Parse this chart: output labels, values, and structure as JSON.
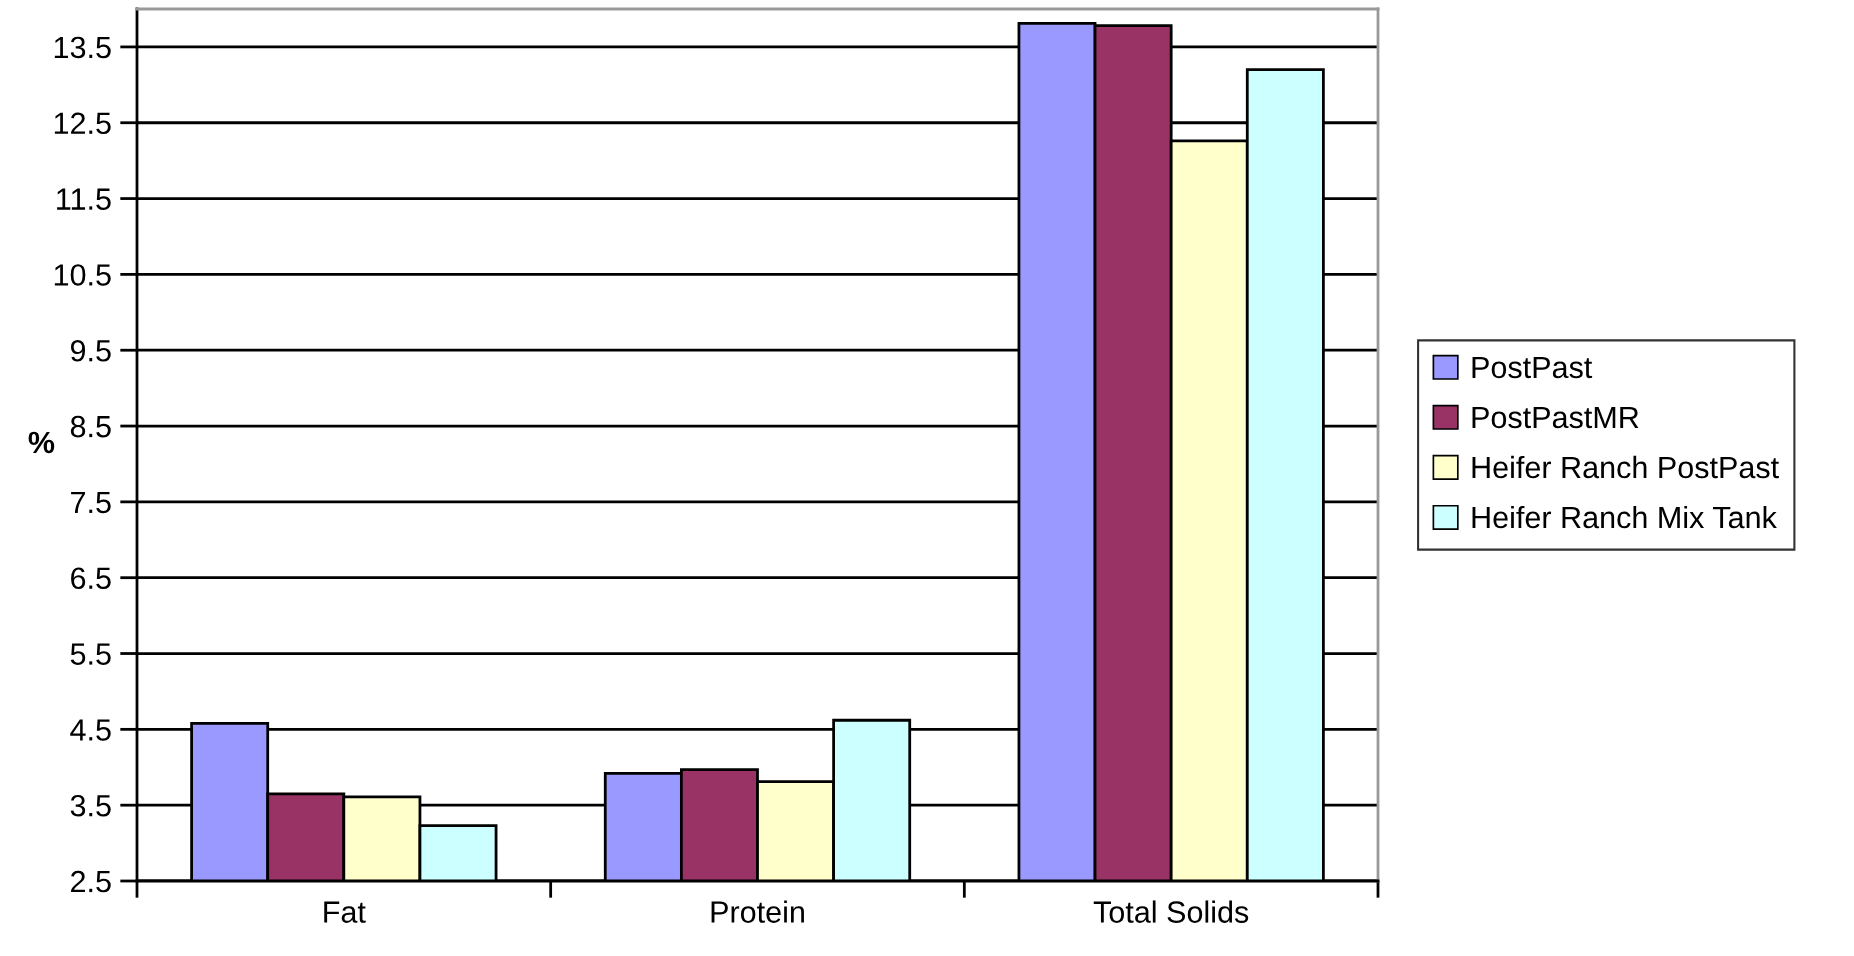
{
  "chart_data": {
    "type": "bar",
    "ylabel": "%",
    "categories": [
      "Fat",
      "Protein",
      "Total Solids"
    ],
    "series": [
      {
        "name": "PostPast",
        "color": "#9999ff",
        "values": [
          4.58,
          3.92,
          13.81
        ]
      },
      {
        "name": "PostPastMR",
        "color": "#993366",
        "values": [
          3.65,
          3.97,
          13.78
        ]
      },
      {
        "name": "Heifer Ranch PostPast",
        "color": "#ffffcc",
        "values": [
          3.61,
          3.81,
          12.26
        ]
      },
      {
        "name": "Heifer Ranch Mix Tank",
        "color": "#ccffff",
        "values": [
          3.23,
          4.62,
          13.2
        ]
      }
    ],
    "ylim": [
      2.5,
      14.0
    ],
    "yticks": [
      2.5,
      3.5,
      4.5,
      5.5,
      6.5,
      7.5,
      8.5,
      9.5,
      10.5,
      11.5,
      12.5,
      13.5
    ],
    "grid": "y",
    "legend": "right"
  }
}
